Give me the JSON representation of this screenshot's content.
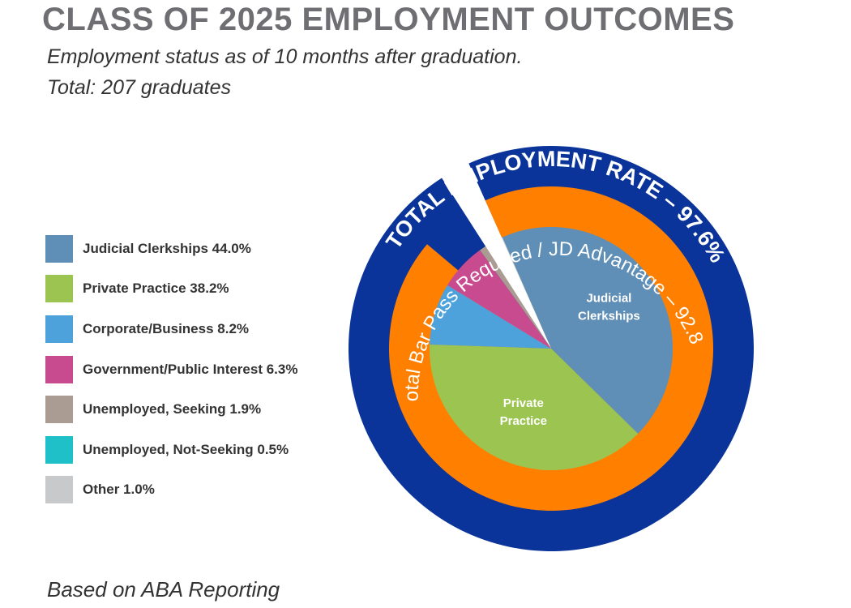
{
  "title": "CLASS OF 2025 EMPLOYMENT OUTCOMES",
  "subtitle_line1": "Employment status as of 10 months after graduation.",
  "subtitle_line2": "Total: 207 graduates",
  "footer": "Based on ABA Reporting",
  "chart_data": {
    "type": "pie",
    "title": "CLASS OF 2025 EMPLOYMENT OUTCOMES",
    "slices": [
      {
        "label": "Judicial Clerkships",
        "value": 44.0,
        "legend": "Judicial Clerkships 44.0%",
        "color": "#5f8fb6",
        "inner_label": [
          "Judicial",
          "Clerkships"
        ]
      },
      {
        "label": "Private Practice",
        "value": 38.2,
        "legend": "Private Practice 38.2%",
        "color": "#9cc450",
        "inner_label": [
          "Private",
          "Practice"
        ]
      },
      {
        "label": "Corporate/Business",
        "value": 8.2,
        "legend": "Corporate/Business 8.2%",
        "color": "#4da2dc",
        "inner_label": []
      },
      {
        "label": "Government/Public Interest",
        "value": 6.3,
        "legend": "Government/Public Interest 6.3%",
        "color": "#c94b8f",
        "inner_label": []
      },
      {
        "label": "Unemployed, Seeking",
        "value": 1.9,
        "legend": "Unemployed, Seeking 1.9%",
        "color": "#aa9c93",
        "inner_label": []
      },
      {
        "label": "Unemployed, Not-Seeking",
        "value": 0.5,
        "legend": "Unemployed, Not-Seeking 0.5%",
        "color": "#1fc0c8",
        "inner_label": []
      },
      {
        "label": "Other",
        "value": 1.0,
        "legend": "Other 1.0%",
        "color": "#c8c9cb",
        "inner_label": []
      }
    ],
    "rings": [
      {
        "label": "Total Bar Pass Required / JD Advantage – 92.8%",
        "value": 92.8,
        "color": "#ff8000"
      },
      {
        "label": "TOTAL EMPLOYMENT RATE – 97.6%",
        "value": 97.6,
        "color": "#0a3499"
      }
    ],
    "legend_position": "left"
  }
}
